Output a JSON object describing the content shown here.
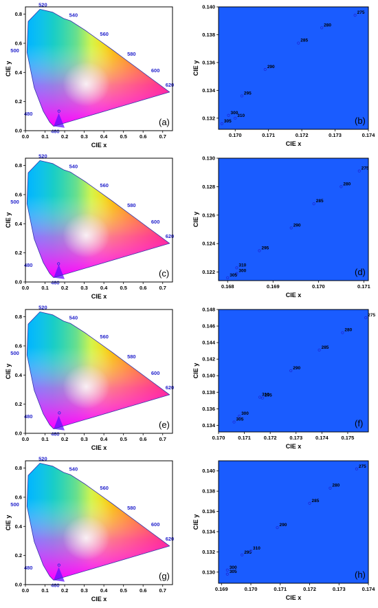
{
  "colors": {
    "locus_label": "#2222cc",
    "zoom_background": "#1a5cff",
    "marker": "#1a2ad6"
  },
  "chart_data": [
    {
      "type": "scatter",
      "variant": "cie-diagram",
      "panel_label": "(a)",
      "xlabel": "CIE x",
      "ylabel": "CIE y",
      "xlim": [
        0,
        0.75
      ],
      "ylim": [
        0,
        0.85
      ],
      "xticks": [
        "0.0",
        "0.1",
        "0.2",
        "0.3",
        "0.4",
        "0.5",
        "0.6",
        "0.7"
      ],
      "yticks": [
        "0.0",
        "0.2",
        "0.4",
        "0.6",
        "0.8"
      ],
      "wavelength_labels": [
        "460",
        "480",
        "500",
        "520",
        "540",
        "560",
        "580",
        "600",
        "620"
      ],
      "points": [
        {
          "x": 0.171,
          "y": 0.134
        }
      ]
    },
    {
      "type": "scatter",
      "variant": "zoom",
      "panel_label": "(b)",
      "xlabel": "CIE x",
      "ylabel": "CIE y",
      "xlim": [
        0.1695,
        0.174
      ],
      "ylim": [
        0.1312,
        0.14
      ],
      "xticks": [
        "0.170",
        "0.171",
        "0.172",
        "0.173",
        "0.174"
      ],
      "yticks": [
        "0.132",
        "0.134",
        "0.136",
        "0.138",
        "0.140"
      ],
      "points": [
        {
          "label": "275",
          "x": 0.1736,
          "y": 0.1394
        },
        {
          "label": "280",
          "x": 0.1726,
          "y": 0.1385
        },
        {
          "label": "285",
          "x": 0.1719,
          "y": 0.1374
        },
        {
          "label": "290",
          "x": 0.1709,
          "y": 0.1355
        },
        {
          "label": "295",
          "x": 0.1702,
          "y": 0.1336
        },
        {
          "label": "300",
          "x": 0.1698,
          "y": 0.1322
        },
        {
          "label": "305",
          "x": 0.1696,
          "y": 0.1316
        },
        {
          "label": "310",
          "x": 0.17,
          "y": 0.132
        }
      ]
    },
    {
      "type": "scatter",
      "variant": "cie-diagram",
      "panel_label": "(c)",
      "xlabel": "CIE x",
      "ylabel": "CIE y",
      "xlim": [
        0,
        0.75
      ],
      "ylim": [
        0,
        0.85
      ],
      "xticks": [
        "0.0",
        "0.1",
        "0.2",
        "0.3",
        "0.4",
        "0.5",
        "0.6",
        "0.7"
      ],
      "yticks": [
        "0.0",
        "0.2",
        "0.4",
        "0.6",
        "0.8"
      ],
      "wavelength_labels": [
        "460",
        "480",
        "500",
        "520",
        "540",
        "560",
        "580",
        "600",
        "620"
      ],
      "points": [
        {
          "x": 0.169,
          "y": 0.125
        }
      ]
    },
    {
      "type": "scatter",
      "variant": "zoom",
      "panel_label": "(d)",
      "xlabel": "CIE x",
      "ylabel": "CIE y",
      "xlim": [
        0.1678,
        0.1711
      ],
      "ylim": [
        0.1214,
        0.13
      ],
      "xticks": [
        "0.168",
        "0.169",
        "0.170",
        "0.171"
      ],
      "yticks": [
        "0.122",
        "0.124",
        "0.126",
        "0.128",
        "0.130"
      ],
      "points": [
        {
          "label": "275",
          "x": 0.1709,
          "y": 0.1291
        },
        {
          "label": "280",
          "x": 0.1705,
          "y": 0.128
        },
        {
          "label": "285",
          "x": 0.1699,
          "y": 0.1268
        },
        {
          "label": "290",
          "x": 0.1694,
          "y": 0.1251
        },
        {
          "label": "295",
          "x": 0.1687,
          "y": 0.1235
        },
        {
          "label": "300",
          "x": 0.1682,
          "y": 0.1219
        },
        {
          "label": "305",
          "x": 0.168,
          "y": 0.1216
        },
        {
          "label": "310",
          "x": 0.1682,
          "y": 0.1223
        }
      ]
    },
    {
      "type": "scatter",
      "variant": "cie-diagram",
      "panel_label": "(e)",
      "xlabel": "CIE x",
      "ylabel": "CIE y",
      "xlim": [
        0,
        0.75
      ],
      "ylim": [
        0,
        0.85
      ],
      "xticks": [
        "0.0",
        "0.1",
        "0.2",
        "0.3",
        "0.4",
        "0.5",
        "0.6",
        "0.7"
      ],
      "yticks": [
        "0.0",
        "0.2",
        "0.4",
        "0.6",
        "0.8"
      ],
      "wavelength_labels": [
        "460",
        "480",
        "500",
        "520",
        "540",
        "560",
        "580",
        "600",
        "620"
      ],
      "points": [
        {
          "x": 0.173,
          "y": 0.14
        }
      ]
    },
    {
      "type": "scatter",
      "variant": "zoom",
      "panel_label": "(f)",
      "xlabel": "CIE x",
      "ylabel": "CIE y",
      "xlim": [
        0.17,
        0.1758
      ],
      "ylim": [
        0.1332,
        0.148
      ],
      "xticks": [
        "0.170",
        "0.171",
        "0.172",
        "0.173",
        "0.174",
        "0.175"
      ],
      "yticks": [
        "0.134",
        "0.136",
        "0.138",
        "0.140",
        "0.142",
        "0.144",
        "0.146",
        "0.148"
      ],
      "points": [
        {
          "label": "275",
          "x": 0.1757,
          "y": 0.147
        },
        {
          "label": "280",
          "x": 0.1748,
          "y": 0.1452
        },
        {
          "label": "285",
          "x": 0.1739,
          "y": 0.1431
        },
        {
          "label": "290",
          "x": 0.1728,
          "y": 0.1406
        },
        {
          "label": "295",
          "x": 0.1717,
          "y": 0.1373
        },
        {
          "label": "300",
          "x": 0.1708,
          "y": 0.1351
        },
        {
          "label": "305",
          "x": 0.1706,
          "y": 0.1344
        },
        {
          "label": "310",
          "x": 0.1716,
          "y": 0.1374
        }
      ]
    },
    {
      "type": "scatter",
      "variant": "cie-diagram",
      "panel_label": "(g)",
      "xlabel": "CIE x",
      "ylabel": "CIE y",
      "xlim": [
        0,
        0.75
      ],
      "ylim": [
        0,
        0.85
      ],
      "xticks": [
        "0.0",
        "0.1",
        "0.2",
        "0.3",
        "0.4",
        "0.5",
        "0.6",
        "0.7"
      ],
      "yticks": [
        "0.0",
        "0.2",
        "0.4",
        "0.6",
        "0.8"
      ],
      "wavelength_labels": [
        "460",
        "480",
        "500",
        "520",
        "540",
        "560",
        "580",
        "600",
        "620"
      ],
      "points": [
        {
          "x": 0.171,
          "y": 0.134
        }
      ]
    },
    {
      "type": "scatter",
      "variant": "zoom",
      "panel_label": "(h)",
      "xlabel": "CIE x",
      "ylabel": "CIE y",
      "xlim": [
        0.1689,
        0.174
      ],
      "ylim": [
        0.1289,
        0.141
      ],
      "xticks": [
        "0.169",
        "0.170",
        "0.171",
        "0.172",
        "0.173",
        "0.174"
      ],
      "yticks": [
        "0.130",
        "0.132",
        "0.134",
        "0.136",
        "0.138",
        "0.140"
      ],
      "points": [
        {
          "label": "275",
          "x": 0.1736,
          "y": 0.1402
        },
        {
          "label": "280",
          "x": 0.1727,
          "y": 0.1383
        },
        {
          "label": "285",
          "x": 0.172,
          "y": 0.1368
        },
        {
          "label": "290",
          "x": 0.1709,
          "y": 0.1344
        },
        {
          "label": "295",
          "x": 0.1697,
          "y": 0.1317
        },
        {
          "label": "300",
          "x": 0.1692,
          "y": 0.1302
        },
        {
          "label": "305",
          "x": 0.1692,
          "y": 0.1298
        },
        {
          "label": "310",
          "x": 0.17,
          "y": 0.1321
        }
      ]
    }
  ]
}
